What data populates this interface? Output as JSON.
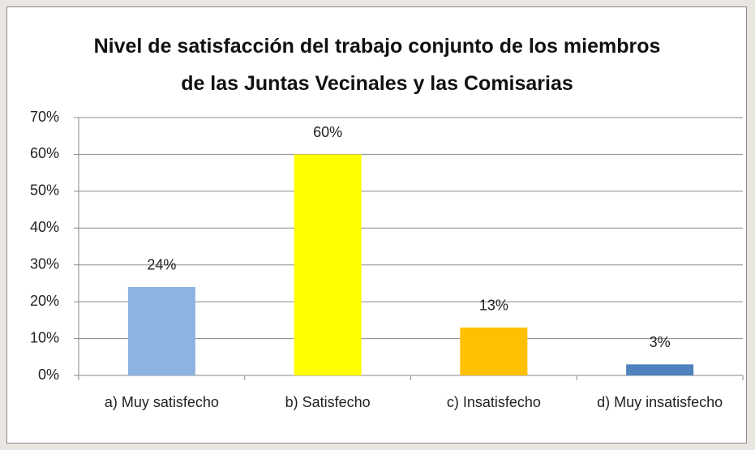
{
  "chart_data": {
    "type": "bar",
    "title": "Nivel de satisfacción del trabajo conjunto de los miembros de las Juntas Vecinales y las Comisarias",
    "categories": [
      "a) Muy satisfecho",
      "b) Satisfecho",
      "c) Insatisfecho",
      "d) Muy insatisfecho"
    ],
    "values": [
      24,
      60,
      13,
      3
    ],
    "value_labels": [
      "24%",
      "60%",
      "13%",
      "3%"
    ],
    "colors": [
      "#8db3e2",
      "#ffff00",
      "#ffc000",
      "#4f81bd"
    ],
    "ylim": [
      0,
      70
    ],
    "yticks": [
      {
        "value": 0,
        "label": "0%"
      },
      {
        "value": 10,
        "label": "10%"
      },
      {
        "value": 20,
        "label": "20%"
      },
      {
        "value": 30,
        "label": "30%"
      },
      {
        "value": 40,
        "label": "40%"
      },
      {
        "value": 50,
        "label": "50%"
      },
      {
        "value": 60,
        "label": "60%"
      },
      {
        "value": 70,
        "label": "70%"
      }
    ],
    "grid": true
  }
}
